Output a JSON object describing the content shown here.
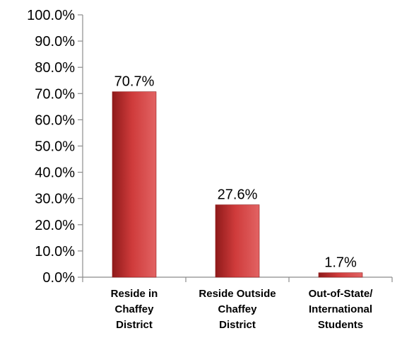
{
  "chart_data": {
    "type": "bar",
    "categories": [
      [
        "Reside in",
        "Chaffey",
        "District"
      ],
      [
        "Reside Outside",
        "Chaffey",
        "District"
      ],
      [
        "Out-of-State/",
        "International",
        "Students"
      ]
    ],
    "values": [
      70.7,
      27.6,
      1.7
    ],
    "data_labels": [
      "70.7%",
      "27.6%",
      "1.7%"
    ],
    "y_ticks": [
      "0.0%",
      "10.0%",
      "20.0%",
      "30.0%",
      "40.0%",
      "50.0%",
      "60.0%",
      "70.0%",
      "80.0%",
      "90.0%",
      "100.0%"
    ],
    "ylim": [
      0,
      100
    ],
    "grid": false,
    "legend": "none",
    "title": "",
    "xlabel": "",
    "ylabel": "",
    "colors": {
      "bar_dark": "#8f1a1a",
      "bar_mid": "#cf3b3b",
      "bar_light": "#e26363",
      "axis": "#8c8c8c"
    }
  }
}
